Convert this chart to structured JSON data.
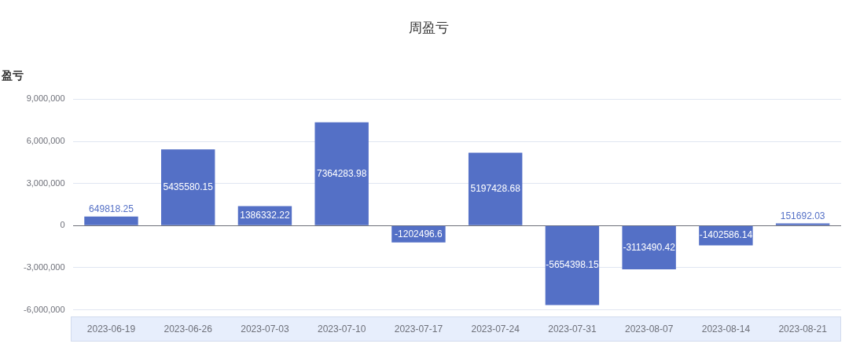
{
  "chart_data": {
    "type": "bar",
    "title": "周盈亏",
    "ylabel": "盈亏",
    "categories": [
      "2023-06-19",
      "2023-06-26",
      "2023-07-03",
      "2023-07-10",
      "2023-07-17",
      "2023-07-24",
      "2023-07-31",
      "2023-08-07",
      "2023-08-14",
      "2023-08-21"
    ],
    "values": [
      649818.25,
      5435580.15,
      1386332.22,
      7364283.98,
      -1202496.6,
      5197428.68,
      -5654398.15,
      -3113490.42,
      -1402586.14,
      151692.03
    ],
    "color": "#5470c6",
    "ylim": [
      -6000000,
      9000000
    ],
    "yticks": [
      {
        "value": -6000000,
        "label": "-6,000,000"
      },
      {
        "value": -3000000,
        "label": "-3,000,000"
      },
      {
        "value": 0,
        "label": "0"
      },
      {
        "value": 3000000,
        "label": "3,000,000"
      },
      {
        "value": 6000000,
        "label": "6,000,000"
      },
      {
        "value": 9000000,
        "label": "9,000,000"
      }
    ],
    "grid": "y",
    "data_labels": true,
    "legend": false
  }
}
